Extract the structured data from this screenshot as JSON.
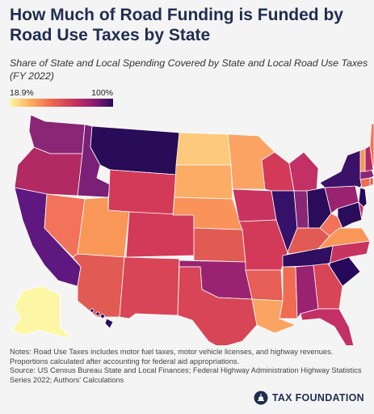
{
  "title": "How Much of Road Funding is Funded by Road Use Taxes by State",
  "subtitle": "Share of State and Local Spending Covered by State and Local Road Use Taxes (FY 2022)",
  "legend": {
    "min_label": "18.9%",
    "max_label": "100%",
    "min": 18.9,
    "max": 100
  },
  "colors": {
    "scale": [
      "#fdf6a4",
      "#fcb65f",
      "#ee6a4f",
      "#c9325d",
      "#8a1c73",
      "#2a0c5a"
    ],
    "brand": "#1f2d52"
  },
  "notes": [
    "Notes: Road Use Taxes includes motor fuel taxes, motor vehicle licenses, and highway revenues. Proportions calculated after accounting for federal aid appropriations.",
    "Source: US Census Bureau State and Local Finances; Federal Highway Administration Highway Statistics Series 2022; Authors' Calculations"
  ],
  "brand": {
    "name": "TAX FOUNDATION",
    "icon": "capitol-dome-icon"
  }
}
